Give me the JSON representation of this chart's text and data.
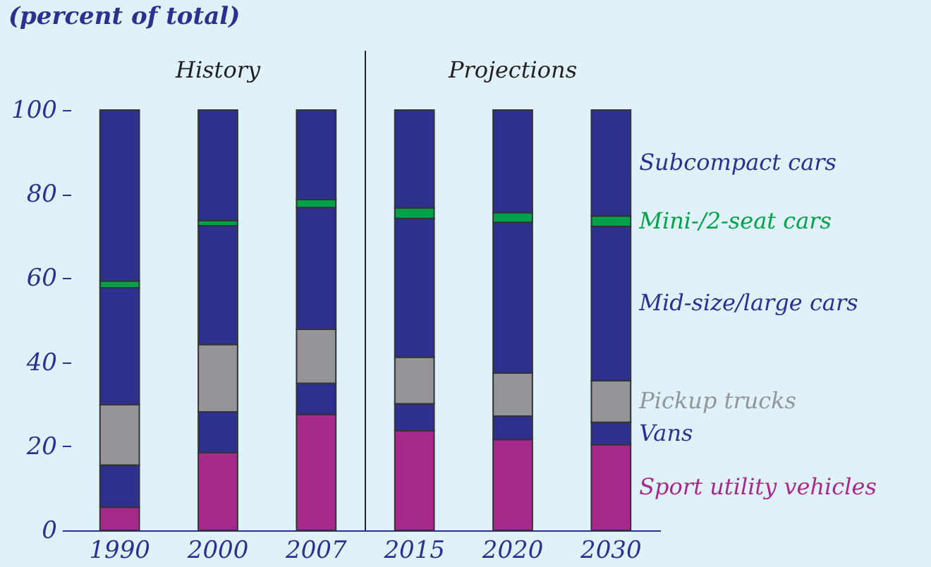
{
  "chart_data": {
    "type": "bar",
    "title": "(percent of total)",
    "stacked": true,
    "categories": [
      "1990",
      "2000",
      "2007",
      "2015",
      "2020",
      "2030"
    ],
    "series": [
      {
        "name": "Sport utility vehicles",
        "color": "#a8298c",
        "values": [
          5.5,
          18.5,
          27.6,
          23.7,
          21.6,
          20.4
        ]
      },
      {
        "name": "Vans",
        "color": "#2e3090",
        "values": [
          10,
          9.7,
          7.4,
          6.4,
          5.6,
          5.3
        ]
      },
      {
        "name": "Pickup trucks",
        "color": "#939598",
        "values": [
          14.4,
          16,
          12.8,
          11.1,
          10.2,
          9.9
        ]
      },
      {
        "name": "Mid-size/large cars",
        "color": "#2e3090",
        "values": [
          27.8,
          28.3,
          29,
          33,
          35.9,
          36.7
        ]
      },
      {
        "name": "Mini-/2-seat cars",
        "color": "#00a04b",
        "values": [
          1.6,
          1.2,
          1.9,
          2.5,
          2.3,
          2.5
        ]
      },
      {
        "name": "Subcompact cars",
        "color": "#2e3090",
        "values": [
          40.7,
          26.3,
          21.3,
          23.3,
          24.4,
          25.2
        ]
      }
    ],
    "ylim": [
      0,
      100
    ],
    "yticks": [
      0,
      20,
      40,
      60,
      80,
      100
    ],
    "grid": false,
    "legend": "right",
    "annotations": [
      "History",
      "Projections"
    ]
  }
}
